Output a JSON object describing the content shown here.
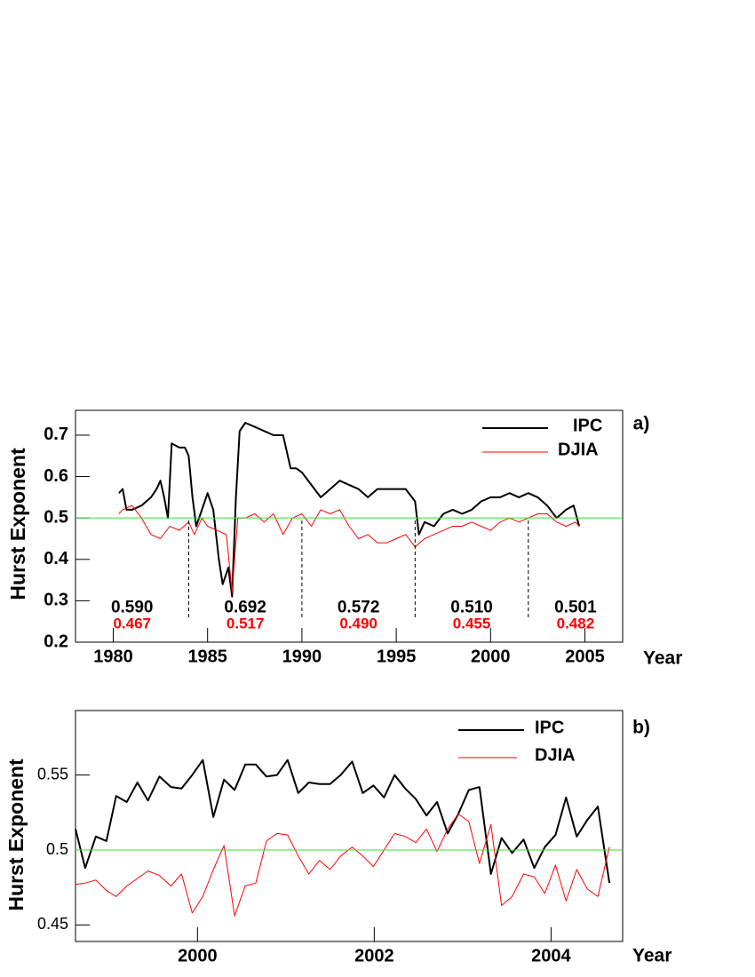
{
  "chart_data": [
    {
      "type": "line",
      "panel_label": "a)",
      "y_label": "Hurst Exponent",
      "x_label": "Year",
      "xlim": [
        1978,
        2007
      ],
      "ylim": [
        0.2,
        0.76
      ],
      "xticks": [
        1980,
        1985,
        1990,
        1995,
        2000,
        2005
      ],
      "yticks": [
        0.2,
        0.3,
        0.4,
        0.5,
        0.6,
        0.7
      ],
      "reference_line": 0.5,
      "reference_color": "#33dd33",
      "period_boundaries": [
        1984,
        1990,
        1996,
        2002
      ],
      "period_stats": [
        {
          "ipc": "0.590",
          "djia": "0.467"
        },
        {
          "ipc": "0.692",
          "djia": "0.517"
        },
        {
          "ipc": "0.572",
          "djia": "0.490"
        },
        {
          "ipc": "0.510",
          "djia": "0.455"
        },
        {
          "ipc": "0.501",
          "djia": "0.482"
        }
      ],
      "series": [
        {
          "name": "IPC",
          "color": "#000000",
          "x": [
            1980.3,
            1980.5,
            1980.7,
            1981,
            1981.5,
            1982,
            1982.3,
            1982.5,
            1982.7,
            1982.9,
            1983.1,
            1983.5,
            1983.8,
            1984,
            1984.2,
            1984.4,
            1984.7,
            1985,
            1985.3,
            1985.6,
            1985.8,
            1986.1,
            1986.3,
            1986.5,
            1986.7,
            1987,
            1987.5,
            1988,
            1988.5,
            1989,
            1989.4,
            1989.7,
            1990,
            1990.5,
            1991,
            1991.5,
            1992,
            1992.5,
            1993,
            1993.5,
            1994,
            1994.5,
            1995,
            1995.5,
            1996,
            1996.2,
            1996.5,
            1997,
            1997.5,
            1998,
            1998.5,
            1999,
            1999.5,
            2000,
            2000.5,
            2001,
            2001.5,
            2002,
            2002.5,
            2003,
            2003.5,
            2004,
            2004.4,
            2004.7
          ],
          "values": [
            0.56,
            0.57,
            0.52,
            0.52,
            0.53,
            0.55,
            0.57,
            0.59,
            0.55,
            0.5,
            0.68,
            0.67,
            0.67,
            0.65,
            0.55,
            0.48,
            0.52,
            0.56,
            0.52,
            0.4,
            0.34,
            0.38,
            0.31,
            0.55,
            0.71,
            0.73,
            0.72,
            0.71,
            0.7,
            0.7,
            0.62,
            0.62,
            0.61,
            0.58,
            0.55,
            0.57,
            0.59,
            0.58,
            0.57,
            0.55,
            0.57,
            0.57,
            0.57,
            0.57,
            0.54,
            0.46,
            0.49,
            0.48,
            0.51,
            0.52,
            0.51,
            0.52,
            0.54,
            0.55,
            0.55,
            0.56,
            0.55,
            0.56,
            0.55,
            0.53,
            0.5,
            0.52,
            0.53,
            0.48
          ]
        },
        {
          "name": "DJIA",
          "color": "#ff0000",
          "x": [
            1980.3,
            1980.5,
            1981,
            1981.5,
            1982,
            1982.5,
            1983,
            1983.5,
            1984,
            1984.3,
            1984.7,
            1985,
            1985.5,
            1986,
            1986.3,
            1986.6,
            1987,
            1987.5,
            1988,
            1988.5,
            1989,
            1989.5,
            1990,
            1990.5,
            1991,
            1991.5,
            1992,
            1992.5,
            1993,
            1993.5,
            1994,
            1994.5,
            1995,
            1995.5,
            1996,
            1996.5,
            1997,
            1997.5,
            1998,
            1998.5,
            1999,
            1999.5,
            2000,
            2000.5,
            2001,
            2001.5,
            2002,
            2002.5,
            2003,
            2003.5,
            2004,
            2004.5,
            2004.7
          ],
          "values": [
            0.51,
            0.52,
            0.53,
            0.5,
            0.46,
            0.45,
            0.48,
            0.47,
            0.49,
            0.46,
            0.5,
            0.48,
            0.47,
            0.46,
            0.32,
            0.5,
            0.5,
            0.51,
            0.49,
            0.51,
            0.46,
            0.5,
            0.51,
            0.48,
            0.52,
            0.51,
            0.52,
            0.48,
            0.45,
            0.46,
            0.44,
            0.44,
            0.45,
            0.46,
            0.43,
            0.45,
            0.46,
            0.47,
            0.48,
            0.48,
            0.49,
            0.48,
            0.47,
            0.49,
            0.5,
            0.49,
            0.5,
            0.51,
            0.51,
            0.49,
            0.48,
            0.49,
            0.48
          ]
        }
      ]
    },
    {
      "type": "line",
      "panel_label": "b)",
      "y_label": "Hurst Exponent",
      "x_label": "Year",
      "xlim": [
        1998.62,
        2004.81
      ],
      "ylim": [
        0.439,
        0.593
      ],
      "xticks": [
        2000,
        2002,
        2004
      ],
      "yticks": [
        0.45,
        0.5,
        0.55
      ],
      "reference_line": 0.5,
      "reference_color": "#33dd33",
      "x": [
        1998.62,
        1998.73,
        1998.85,
        1998.97,
        1999.08,
        1999.2,
        1999.32,
        1999.44,
        1999.57,
        1999.7,
        1999.82,
        1999.94,
        2000.06,
        2000.18,
        2000.3,
        2000.42,
        2000.54,
        2000.66,
        2000.78,
        2000.9,
        2001.02,
        2001.14,
        2001.26,
        2001.38,
        2001.5,
        2001.62,
        2001.75,
        2001.87,
        2001.99,
        2002.11,
        2002.23,
        2002.35,
        2002.47,
        2002.59,
        2002.71,
        2002.83,
        2002.95,
        2003.07,
        2003.19,
        2003.32,
        2003.44,
        2003.56,
        2003.69,
        2003.81,
        2003.93,
        2004.05,
        2004.17,
        2004.29,
        2004.41,
        2004.53,
        2004.66
      ],
      "series": [
        {
          "name": "IPC",
          "color": "#000000",
          "values": [
            0.514,
            0.488,
            0.509,
            0.506,
            0.536,
            0.532,
            0.545,
            0.533,
            0.549,
            0.542,
            0.541,
            0.55,
            0.56,
            0.522,
            0.547,
            0.54,
            0.557,
            0.557,
            0.549,
            0.55,
            0.56,
            0.538,
            0.545,
            0.544,
            0.544,
            0.55,
            0.559,
            0.538,
            0.543,
            0.535,
            0.55,
            0.541,
            0.534,
            0.523,
            0.532,
            0.511,
            0.524,
            0.54,
            0.542,
            0.484,
            0.508,
            0.498,
            0.507,
            0.488,
            0.502,
            0.51,
            0.535,
            0.509,
            0.52,
            0.529,
            0.478
          ]
        },
        {
          "name": "DJIA",
          "color": "#ff0000",
          "values": [
            0.477,
            0.478,
            0.48,
            0.473,
            0.469,
            0.476,
            0.481,
            0.486,
            0.483,
            0.476,
            0.484,
            0.458,
            0.469,
            0.487,
            0.503,
            0.456,
            0.476,
            0.478,
            0.506,
            0.511,
            0.51,
            0.496,
            0.484,
            0.493,
            0.487,
            0.496,
            0.502,
            0.496,
            0.489,
            0.5,
            0.511,
            0.509,
            0.505,
            0.514,
            0.499,
            0.514,
            0.524,
            0.519,
            0.491,
            0.517,
            0.463,
            0.469,
            0.484,
            0.482,
            0.471,
            0.49,
            0.466,
            0.487,
            0.474,
            0.469,
            0.502
          ]
        }
      ]
    }
  ]
}
